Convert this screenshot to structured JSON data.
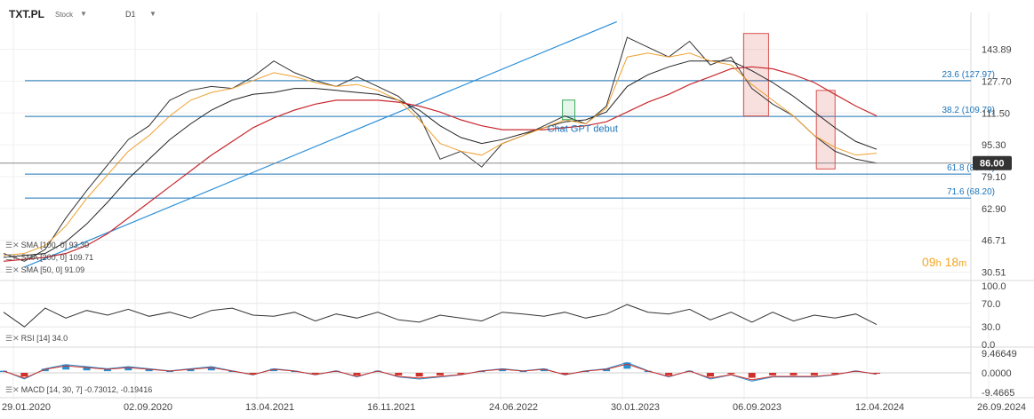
{
  "header": {
    "symbol": "TXT.PL",
    "type": "Stock",
    "timeframe": "D1"
  },
  "timer": {
    "hours": "09",
    "h_label": "h",
    "minutes": "18",
    "m_label": "m"
  },
  "colors": {
    "price": "#333333",
    "sma100": "#222222",
    "sma200": "#c8282e",
    "sma50": "#f0a030",
    "fib": "#1a73b8",
    "trend": "#2c8fd8",
    "badge": "#333333",
    "rect": "#d9534f",
    "rsi": "#333333",
    "macd_up": "#2a8fd0",
    "macd_down": "#d0302a"
  },
  "legend": {
    "sma100": "SMA [100, 0]  93.30",
    "sma200": "SMA [200, 0]  109.71",
    "sma50": "SMA [50, 0]  91.09",
    "rsi": "RSI [14]  34.0",
    "macd": "MACD [14, 30, 7]  -0.73012, -0.19416"
  },
  "chart_data": [
    {
      "type": "line",
      "title": "",
      "price_axis_ticks": [
        "143.89",
        "127.70",
        "111.50",
        "95.30",
        "79.10",
        "62.90",
        "46.71",
        "30.51"
      ],
      "ylim": [
        28,
        160
      ],
      "x_labels": [
        "29.01.2020",
        "02.09.2020",
        "13.04.2021",
        "16.11.2021",
        "24.06.2022",
        "30.01.2023",
        "06.09.2023",
        "12.04.2024",
        "26.09.2024"
      ],
      "series": [
        {
          "name": "",
          "values": [
            40,
            36,
            42,
            58,
            72,
            85,
            98,
            105,
            118,
            123,
            125,
            124,
            130,
            138,
            132,
            128,
            125,
            130,
            125,
            120,
            110,
            88,
            92,
            84,
            96,
            100,
            105,
            110,
            106,
            115,
            150,
            145,
            140,
            148,
            136,
            140,
            124,
            116,
            110,
            100,
            92,
            88,
            86
          ]
        },
        {
          "name": "",
          "values": [
            38,
            39,
            40,
            46,
            55,
            66,
            78,
            88,
            98,
            106,
            113,
            118,
            121,
            122,
            124,
            124,
            123,
            122,
            121,
            118,
            113,
            105,
            99,
            96,
            98,
            101,
            104,
            107,
            108,
            112,
            125,
            131,
            135,
            138,
            138,
            138,
            133,
            127,
            120,
            112,
            104,
            97,
            93
          ]
        },
        {
          "name": "",
          "values": [
            36,
            37,
            38,
            40,
            44,
            50,
            58,
            66,
            74,
            82,
            90,
            97,
            104,
            109,
            113,
            116,
            118,
            118,
            118,
            117,
            115,
            112,
            108,
            105,
            103,
            103,
            103,
            104,
            105,
            107,
            112,
            117,
            121,
            126,
            130,
            134,
            135,
            134,
            131,
            127,
            121,
            115,
            110
          ]
        },
        {
          "name": "",
          "values": [
            39,
            40,
            44,
            54,
            68,
            80,
            92,
            100,
            110,
            118,
            122,
            124,
            128,
            132,
            130,
            127,
            125,
            126,
            123,
            118,
            108,
            96,
            92,
            90,
            96,
            100,
            104,
            108,
            106,
            114,
            140,
            142,
            140,
            142,
            138,
            136,
            126,
            118,
            110,
            100,
            94,
            90,
            91
          ]
        }
      ],
      "fib_levels": [
        {
          "label": "23.6 (127.97)",
          "value": 127.97
        },
        {
          "label": "38.2 (109.79)",
          "value": 109.79
        },
        {
          "label": "61.8 (80.40)",
          "value": 80.4
        },
        {
          "label": "71.6 (68.20)",
          "value": 68.2
        }
      ],
      "current_price": {
        "label": "86.00",
        "value": 86.0
      },
      "trendline": {
        "from": {
          "x": 1,
          "y": 33
        },
        "to": {
          "x": 29.5,
          "y": 158
        }
      },
      "annotation": {
        "text": "Chat GPT debut",
        "x": 26.5,
        "y": 100
      },
      "rectangles": [
        {
          "x0": 35.6,
          "x1": 36.8,
          "y0": 110,
          "y1": 152
        },
        {
          "x0": 39.1,
          "x1": 40.0,
          "y0": 83,
          "y1": 123
        }
      ]
    },
    {
      "type": "line",
      "name": "RSI",
      "ticks": [
        "100.0",
        "70.0",
        "30.0",
        "0.0"
      ],
      "ylim": [
        0,
        100
      ],
      "values": [
        55,
        30,
        62,
        45,
        58,
        50,
        60,
        48,
        55,
        45,
        58,
        62,
        50,
        48,
        55,
        40,
        52,
        45,
        55,
        42,
        38,
        50,
        45,
        40,
        55,
        52,
        48,
        55,
        45,
        52,
        68,
        55,
        52,
        60,
        42,
        55,
        38,
        55,
        40,
        50,
        45,
        52,
        34
      ]
    },
    {
      "type": "bar",
      "name": "MACD",
      "ticks": [
        "9.46649",
        "0.0000",
        "-9.4665"
      ],
      "ylim": [
        -9.4665,
        9.46649
      ],
      "values": [
        1,
        -3,
        2,
        4,
        3,
        2,
        3,
        2,
        1,
        2,
        3,
        1,
        -1,
        2,
        1,
        -1,
        1,
        -2,
        1,
        -2,
        -3,
        -2,
        -1,
        1,
        2,
        1,
        2,
        -1,
        1,
        2,
        5,
        1,
        -2,
        1,
        -3,
        -1,
        -4,
        -2,
        -2,
        -2,
        -1,
        1,
        -0.7
      ]
    }
  ]
}
